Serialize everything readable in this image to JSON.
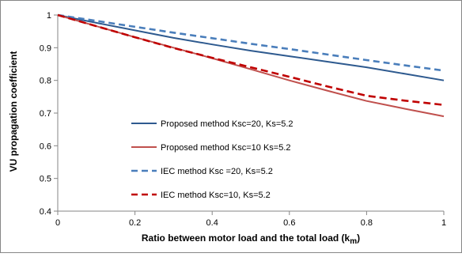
{
  "chart_data": {
    "type": "line",
    "title": "",
    "xlabel": "Ratio between motor load and the total load (k",
    "xlabel_subscript": "m",
    "xlabel_suffix": ")",
    "ylabel": "VU propagation coefficient",
    "xlim": [
      0,
      1
    ],
    "ylim": [
      0.4,
      1
    ],
    "x_ticks": [
      0,
      0.2,
      0.4,
      0.6,
      0.8,
      1
    ],
    "x_tick_labels": [
      "0",
      "0.2",
      "0.4",
      "0.6",
      "0.8",
      "1"
    ],
    "y_ticks": [
      0.4,
      0.5,
      0.6,
      0.7,
      0.8,
      0.9,
      1
    ],
    "y_tick_labels": [
      "0.4",
      "0.5",
      "0.6",
      "0.7",
      "0.8",
      "0.9",
      "1"
    ],
    "grid": false,
    "legend_position": "lower-left inside plot",
    "series": [
      {
        "name": "Proposed method Ksc=20, Ks=5.2",
        "color": "#2e5a8f",
        "dash": "solid",
        "x": [
          0,
          0.05,
          0.1,
          0.2,
          0.3,
          0.4,
          0.5,
          0.6,
          0.7,
          0.8,
          0.9,
          1
        ],
        "y": [
          1,
          0.988,
          0.976,
          0.953,
          0.93,
          0.91,
          0.891,
          0.874,
          0.857,
          0.84,
          0.82,
          0.8
        ]
      },
      {
        "name": "Proposed method Ksc=10 Ks=5.2",
        "color": "#c0504d",
        "dash": "solid",
        "x": [
          0,
          0.05,
          0.1,
          0.2,
          0.3,
          0.4,
          0.5,
          0.6,
          0.7,
          0.8,
          0.9,
          1
        ],
        "y": [
          1,
          0.983,
          0.966,
          0.932,
          0.9,
          0.868,
          0.834,
          0.8,
          0.768,
          0.737,
          0.713,
          0.69
        ]
      },
      {
        "name": "IEC method Ksc =20, Ks=5.2",
        "color": "#4a7ebb",
        "dash": "dashed",
        "x": [
          0,
          0.05,
          0.1,
          0.2,
          0.3,
          0.4,
          0.5,
          0.6,
          0.7,
          0.8,
          0.9,
          1
        ],
        "y": [
          1,
          0.991,
          0.982,
          0.964,
          0.946,
          0.929,
          0.912,
          0.896,
          0.879,
          0.862,
          0.846,
          0.83
        ]
      },
      {
        "name": "IEC method Ksc=10, Ks=5.2",
        "color": "#c00000",
        "dash": "dashed",
        "x": [
          0,
          0.05,
          0.1,
          0.2,
          0.3,
          0.4,
          0.5,
          0.6,
          0.7,
          0.8,
          0.9,
          1
        ],
        "y": [
          1,
          0.983,
          0.966,
          0.932,
          0.899,
          0.869,
          0.84,
          0.811,
          0.781,
          0.753,
          0.738,
          0.725
        ]
      }
    ]
  }
}
